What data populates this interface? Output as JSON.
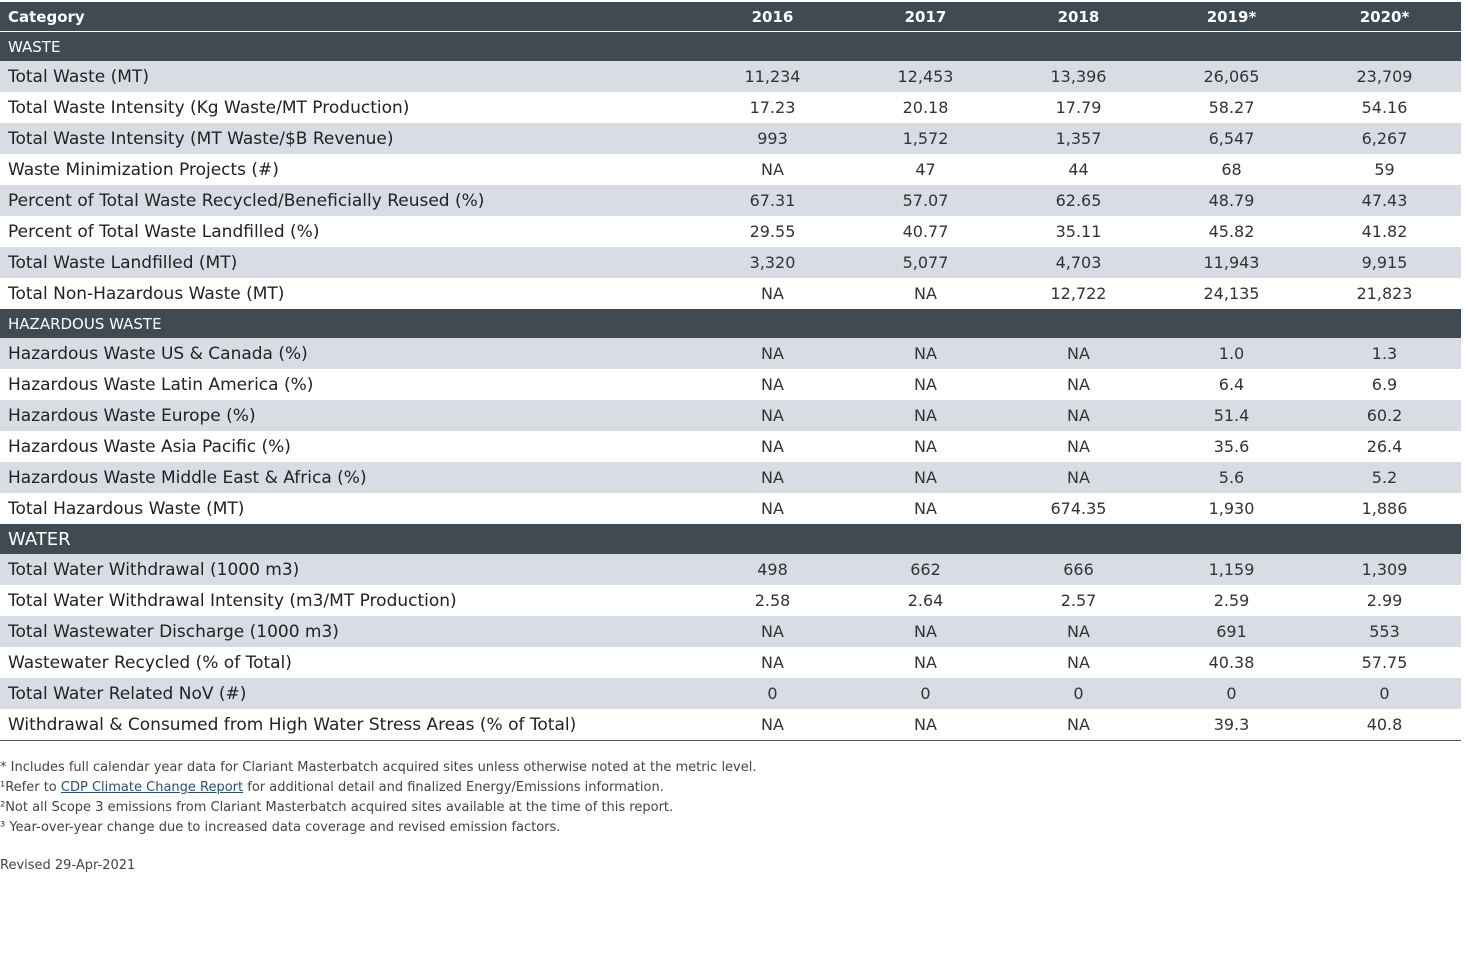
{
  "table": {
    "header": [
      "Category",
      "2016",
      "2017",
      "2018",
      "2019*",
      "2020*"
    ],
    "sections": [
      {
        "title": "WASTE",
        "rows": [
          [
            "Total Waste (MT)",
            "11,234",
            "12,453",
            "13,396",
            "26,065",
            "23,709"
          ],
          [
            "Total Waste Intensity (Kg Waste/MT Production)",
            "17.23",
            "20.18",
            "17.79",
            "58.27",
            "54.16"
          ],
          [
            "Total Waste Intensity (MT Waste/$B Revenue)",
            "993",
            "1,572",
            "1,357",
            "6,547",
            "6,267"
          ],
          [
            "Waste Minimization Projects (#)",
            "NA",
            "47",
            "44",
            "68",
            "59"
          ],
          [
            "Percent of Total Waste Recycled/Beneficially Reused (%)",
            "67.31",
            "57.07",
            "62.65",
            "48.79",
            "47.43"
          ],
          [
            "Percent of Total Waste Landfilled (%)",
            "29.55",
            "40.77",
            "35.11",
            "45.82",
            "41.82"
          ],
          [
            "Total Waste Landfilled (MT)",
            "3,320",
            "5,077",
            "4,703",
            "11,943",
            "9,915"
          ],
          [
            "Total Non-Hazardous Waste (MT)",
            "NA",
            "NA",
            "12,722",
            "24,135",
            "21,823"
          ]
        ]
      },
      {
        "title": "HAZARDOUS WASTE",
        "rows": [
          [
            "Hazardous Waste US & Canada (%)",
            "NA",
            "NA",
            "NA",
            "1.0",
            "1.3"
          ],
          [
            "Hazardous Waste Latin America (%)",
            "NA",
            "NA",
            "NA",
            "6.4",
            "6.9"
          ],
          [
            "Hazardous Waste Europe (%)",
            "NA",
            "NA",
            "NA",
            "51.4",
            "60.2"
          ],
          [
            "Hazardous Waste Asia Pacific (%)",
            "NA",
            "NA",
            "NA",
            "35.6",
            "26.4"
          ],
          [
            "Hazardous Waste Middle East & Africa (%)",
            "NA",
            "NA",
            "NA",
            "5.6",
            "5.2"
          ],
          [
            "Total Hazardous Waste (MT)",
            "NA",
            "NA",
            "674.35",
            "1,930",
            "1,886"
          ]
        ]
      },
      {
        "title": "WATER",
        "rows": [
          [
            "Total Water Withdrawal (1000 m3)",
            "498",
            "662",
            "666",
            "1,159",
            "1,309"
          ],
          [
            "Total Water Withdrawal Intensity (m3/MT Production)",
            "2.58",
            "2.64",
            "2.57",
            "2.59",
            "2.99"
          ],
          [
            "Total Wastewater Discharge (1000 m3)",
            "NA",
            "NA",
            "NA",
            "691",
            "553"
          ],
          [
            "Wastewater Recycled (% of Total)",
            "NA",
            "NA",
            "NA",
            "40.38",
            "57.75"
          ],
          [
            "Total Water Related NoV (#)",
            "0",
            "0",
            "0",
            "0",
            "0"
          ],
          [
            "Withdrawal & Consumed from High Water Stress Areas (% of Total)",
            "NA",
            "NA",
            "NA",
            "39.3",
            "40.8"
          ]
        ]
      }
    ]
  },
  "footnotes": [
    {
      "text": "* Includes full calendar year data for Clariant Masterbatch acquired sites unless otherwise noted at the metric level."
    },
    {
      "text": "¹Refer to ",
      "link": "CDP Climate Change Report",
      "after": " for additional detail and finalized Energy/Emissions information."
    },
    {
      "text": "²Not all Scope 3 emissions from Clariant Masterbatch acquired sites available at the time of this report."
    },
    {
      "text": "³ Year-over-year change due to increased data coverage and revised emission factors."
    }
  ],
  "revised": "Revised 29-Apr-2021"
}
